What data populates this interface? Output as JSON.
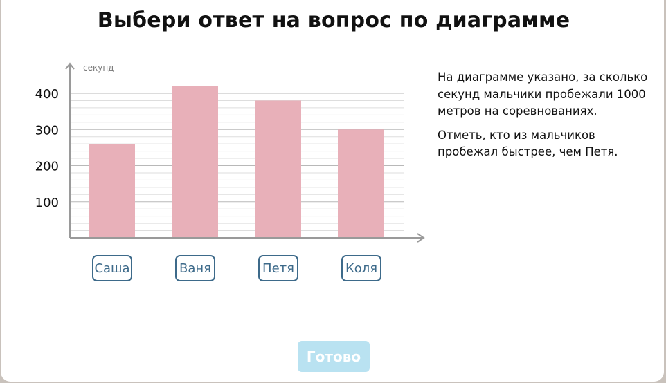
{
  "title": "Выбери ответ на вопрос по диаграмме",
  "question": {
    "text1": "На диаграмме указано, за сколько секунд мальчики пробежали 1000 метров на соревнованиях.",
    "text2": "Отметь, кто из мальчиков пробежал быстрее, чем Петя."
  },
  "answers": [
    "Саша",
    "Ваня",
    "Петя",
    "Коля"
  ],
  "done_label": "Готово",
  "colors": {
    "bar": "#e8b0b9",
    "accent": "#3d6a8a",
    "done_bg": "#b9e2f1"
  },
  "chart_data": {
    "type": "bar",
    "categories": [
      "Саша",
      "Ваня",
      "Петя",
      "Коля"
    ],
    "values": [
      260,
      420,
      380,
      300
    ],
    "ylabel": "секунд",
    "yticks": [
      100,
      200,
      300,
      400
    ],
    "ylim": [
      0,
      420
    ],
    "grid": true
  }
}
